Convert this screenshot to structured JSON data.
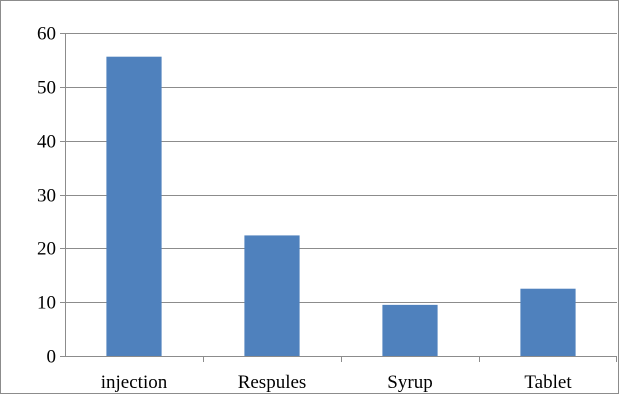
{
  "chart_data": {
    "type": "bar",
    "title": "",
    "xlabel": "",
    "ylabel": "",
    "categories": [
      "injection",
      "Respules",
      "Syrup",
      "Tablet"
    ],
    "values": [
      55.6,
      22.4,
      9.5,
      12.5
    ],
    "ylim": [
      0,
      60
    ],
    "yticks": [
      "0",
      "10",
      "20",
      "30",
      "40",
      "50",
      "60"
    ],
    "grid": true,
    "legend": "none",
    "bar_color": "#4f81bd"
  }
}
